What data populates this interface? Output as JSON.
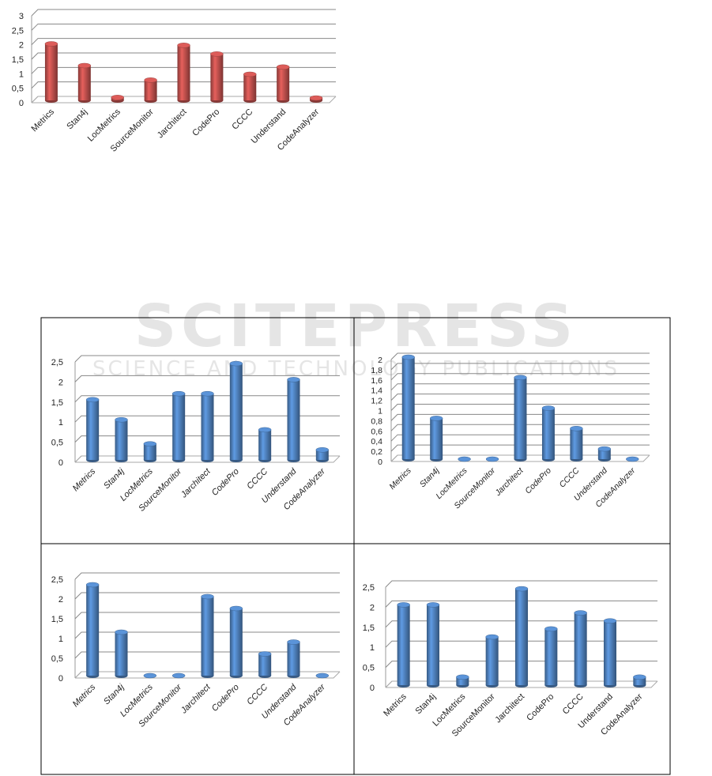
{
  "watermark": {
    "title": "SCITEPRESS",
    "subtitle": "SCIENCE AND TECHNOLOGY PUBLICATIONS"
  },
  "chart_data": [
    {
      "type": "bar",
      "title": "",
      "xlabel": "",
      "ylabel": "",
      "color": "#c0504d",
      "categories": [
        "Metrics",
        "Stan4j",
        "LocMetrics",
        "SourceMonitor",
        "Jarchitect",
        "CodePro",
        "CCCC",
        "Understand",
        "CodeAnalyzer"
      ],
      "values": [
        1.95,
        1.2,
        0.1,
        0.7,
        1.9,
        1.6,
        0.9,
        1.15,
        0.08
      ],
      "ylim": [
        0,
        3
      ],
      "yticks": [
        "0",
        "0,5",
        "1",
        "1,5",
        "2",
        "2,5",
        "3"
      ],
      "grid": true
    },
    {
      "type": "bar",
      "title": "",
      "xlabel": "",
      "ylabel": "",
      "color": "#4f81bd",
      "categories": [
        "Metrics",
        "Stan4j",
        "LocMetrics",
        "SourceMonitor",
        "Jarchitect",
        "CodePro",
        "CCCC",
        "Understand",
        "CodeAnalyzer"
      ],
      "values": [
        1.5,
        1.0,
        0.4,
        1.65,
        1.65,
        2.4,
        0.75,
        2.0,
        0.25
      ],
      "ylim": [
        0,
        2.5
      ],
      "yticks": [
        "0",
        "0,5",
        "1",
        "1,5",
        "2",
        "2,5"
      ],
      "grid": true
    },
    {
      "type": "bar",
      "title": "",
      "xlabel": "",
      "ylabel": "",
      "color": "#4f81bd",
      "categories": [
        "Metrics",
        "Stan4j",
        "LocMetrics",
        "SourceMonitor",
        "Jarchitect",
        "CodePro",
        "CCCC",
        "Understand",
        "CodeAnalyzer"
      ],
      "values": [
        2.0,
        0.8,
        0,
        0,
        1.6,
        1.0,
        0.6,
        0.2,
        0
      ],
      "ylim": [
        0,
        2
      ],
      "yticks": [
        "0",
        "0,2",
        "0,4",
        "0,6",
        "0,8",
        "1",
        "1,2",
        "1,4",
        "1,6",
        "1,8",
        "2"
      ],
      "grid": true
    },
    {
      "type": "bar",
      "title": "",
      "xlabel": "",
      "ylabel": "",
      "color": "#4f81bd",
      "categories": [
        "Metrics",
        "Stan4j",
        "LocMetrics",
        "SourceMonitor",
        "Jarchitect",
        "CodePro",
        "CCCC",
        "Understand",
        "CodeAnalyzer"
      ],
      "values": [
        2.3,
        1.1,
        0,
        0,
        2.0,
        1.7,
        0.55,
        0.85,
        0
      ],
      "ylim": [
        0,
        2.5
      ],
      "yticks": [
        "0",
        "0,5",
        "1",
        "1,5",
        "2",
        "2,5"
      ],
      "grid": true
    },
    {
      "type": "bar",
      "title": "",
      "xlabel": "",
      "ylabel": "",
      "color": "#4f81bd",
      "categories": [
        "Metrics",
        "Stan4j",
        "LocMetrics",
        "SourceMonitor",
        "Jarchitect",
        "CodePro",
        "CCCC",
        "Understand",
        "CodeAnalyzer"
      ],
      "values": [
        2.0,
        2.0,
        0.2,
        1.2,
        2.4,
        1.4,
        1.8,
        1.6,
        0.2
      ],
      "ylim": [
        0,
        2.5
      ],
      "yticks": [
        "0",
        "0,5",
        "1",
        "1,5",
        "2",
        "2,5"
      ],
      "grid": true
    }
  ]
}
